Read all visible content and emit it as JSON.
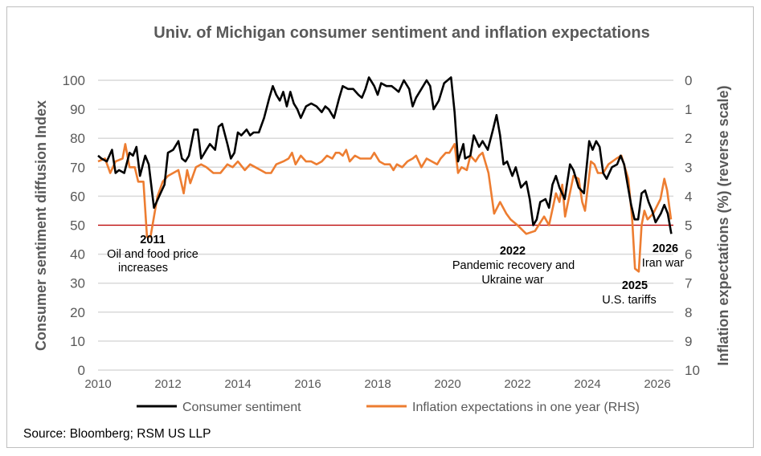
{
  "chart_data": {
    "type": "line",
    "title": "Univ. of Michigan consumer sentiment and inflation expectations",
    "ylabel": "Consumer sentiment diffusion Index",
    "y2label": "Inflation expectations (%) (reverse scale)",
    "xlim": [
      2010,
      2026.4
    ],
    "ylim": [
      0,
      100
    ],
    "y2lim": [
      10,
      0
    ],
    "y2_reversed": true,
    "x_ticks": [
      "2010",
      "2012",
      "2014",
      "2016",
      "2018",
      "2020",
      "2022",
      "2024",
      "2026"
    ],
    "y_ticks": [
      "0",
      "10",
      "20",
      "30",
      "40",
      "50",
      "60",
      "70",
      "80",
      "90",
      "100"
    ],
    "y2_ticks": [
      "0",
      "1",
      "2",
      "3",
      "4",
      "5",
      "6",
      "7",
      "8",
      "9",
      "10"
    ],
    "grid": true,
    "legend": "bottom",
    "reference_line": {
      "y": 50,
      "color": "#C00000"
    },
    "series": [
      {
        "name": "Consumer sentiment",
        "axis": "left",
        "color": "#000000",
        "x": [
          2010.0,
          2010.1,
          2010.25,
          2010.4,
          2010.5,
          2010.6,
          2010.75,
          2010.9,
          2011.0,
          2011.1,
          2011.2,
          2011.35,
          2011.45,
          2011.6,
          2011.75,
          2011.9,
          2012.0,
          2012.15,
          2012.3,
          2012.4,
          2012.5,
          2012.6,
          2012.75,
          2012.85,
          2012.95,
          2013.1,
          2013.2,
          2013.35,
          2013.45,
          2013.55,
          2013.7,
          2013.8,
          2013.9,
          2014.0,
          2014.1,
          2014.25,
          2014.35,
          2014.45,
          2014.6,
          2014.75,
          2014.9,
          2015.0,
          2015.1,
          2015.2,
          2015.3,
          2015.4,
          2015.5,
          2015.6,
          2015.7,
          2015.8,
          2015.95,
          2016.1,
          2016.25,
          2016.4,
          2016.5,
          2016.6,
          2016.75,
          2016.9,
          2017.0,
          2017.15,
          2017.3,
          2017.45,
          2017.55,
          2017.65,
          2017.75,
          2017.9,
          2018.0,
          2018.1,
          2018.25,
          2018.4,
          2018.5,
          2018.6,
          2018.75,
          2018.9,
          2019.0,
          2019.1,
          2019.25,
          2019.4,
          2019.5,
          2019.6,
          2019.75,
          2019.9,
          2020.0,
          2020.1,
          2020.2,
          2020.3,
          2020.45,
          2020.5,
          2020.65,
          2020.75,
          2020.9,
          2021.0,
          2021.15,
          2021.3,
          2021.4,
          2021.5,
          2021.6,
          2021.7,
          2021.85,
          2021.95,
          2022.1,
          2022.25,
          2022.35,
          2022.45,
          2022.55,
          2022.65,
          2022.8,
          2022.9,
          2023.0,
          2023.1,
          2023.2,
          2023.35,
          2023.5,
          2023.6,
          2023.75,
          2023.9,
          2024.05,
          2024.15,
          2024.25,
          2024.35,
          2024.45,
          2024.55,
          2024.7,
          2024.85,
          2024.95,
          2025.05,
          2025.15,
          2025.25,
          2025.35,
          2025.45,
          2025.55,
          2025.65,
          2025.75,
          2025.85,
          2025.95,
          2026.1,
          2026.2,
          2026.3,
          2026.4
        ],
        "values": [
          74,
          73,
          72,
          76,
          68,
          69,
          68,
          75,
          74,
          77,
          67,
          74,
          71,
          56,
          60,
          64,
          75,
          76,
          79,
          73,
          72,
          74,
          83,
          83,
          73,
          76,
          78,
          76,
          84,
          85,
          78,
          73,
          75,
          82,
          81,
          83,
          81,
          82,
          82,
          87,
          94,
          98,
          95,
          93,
          96,
          91,
          96,
          92,
          90,
          87,
          91,
          92,
          91,
          89,
          91,
          90,
          87,
          94,
          98,
          97,
          97,
          95,
          94,
          97,
          101,
          98,
          95,
          99,
          98,
          98,
          97,
          96,
          100,
          97,
          91,
          94,
          97,
          100,
          98,
          90,
          93,
          99,
          100,
          101,
          89,
          72,
          78,
          73,
          74,
          81,
          77,
          79,
          76,
          83,
          88,
          81,
          71,
          72,
          67,
          70,
          63,
          65,
          59,
          50,
          52,
          58,
          59,
          56,
          64,
          67,
          63,
          59,
          71,
          69,
          63,
          61,
          79,
          76,
          79,
          77,
          68,
          66,
          70,
          71,
          74,
          71,
          64,
          57,
          52,
          52,
          61,
          62,
          58,
          55,
          51,
          54,
          57,
          54,
          47
        ]
      },
      {
        "name": "Inflation expectations in one year (RHS)",
        "axis": "right",
        "color": "#ED7D31",
        "x": [
          2010.0,
          2010.2,
          2010.35,
          2010.5,
          2010.7,
          2010.78,
          2010.9,
          2011.05,
          2011.15,
          2011.3,
          2011.4,
          2011.5,
          2011.7,
          2011.85,
          2012.0,
          2012.15,
          2012.3,
          2012.45,
          2012.55,
          2012.64,
          2012.8,
          2012.95,
          2013.1,
          2013.3,
          2013.5,
          2013.7,
          2013.85,
          2014.0,
          2014.2,
          2014.35,
          2014.5,
          2014.65,
          2014.8,
          2014.95,
          2015.1,
          2015.3,
          2015.45,
          2015.55,
          2015.65,
          2015.8,
          2015.95,
          2016.1,
          2016.25,
          2016.4,
          2016.55,
          2016.7,
          2016.8,
          2016.9,
          2017.0,
          2017.1,
          2017.2,
          2017.35,
          2017.5,
          2017.65,
          2017.8,
          2017.9,
          2018.05,
          2018.2,
          2018.35,
          2018.45,
          2018.55,
          2018.7,
          2018.85,
          2019.0,
          2019.1,
          2019.25,
          2019.4,
          2019.55,
          2019.7,
          2019.8,
          2019.95,
          2020.05,
          2020.2,
          2020.3,
          2020.4,
          2020.55,
          2020.65,
          2020.8,
          2020.9,
          2021.0,
          2021.17,
          2021.33,
          2021.5,
          2021.68,
          2021.8,
          2022.0,
          2022.25,
          2022.5,
          2022.76,
          2022.9,
          2023.1,
          2023.2,
          2023.28,
          2023.36,
          2023.6,
          2023.75,
          2023.85,
          2023.93,
          2024.1,
          2024.2,
          2024.3,
          2024.45,
          2024.6,
          2024.83,
          2024.97,
          2025.17,
          2025.28,
          2025.36,
          2025.47,
          2025.55,
          2025.63,
          2025.72,
          2025.88,
          2026.09,
          2026.2,
          2026.28,
          2026.39
        ],
        "values": [
          2.8,
          2.7,
          3.2,
          2.8,
          2.7,
          2.2,
          3.0,
          3.0,
          3.5,
          3.5,
          5.4,
          5.4,
          4.0,
          3.5,
          3.3,
          3.2,
          3.1,
          3.9,
          3.1,
          3.55,
          3.0,
          2.9,
          3.0,
          3.2,
          3.2,
          2.9,
          3.0,
          2.8,
          3.1,
          2.9,
          3.0,
          3.1,
          3.2,
          3.2,
          2.9,
          2.8,
          2.7,
          2.5,
          2.9,
          2.6,
          2.8,
          2.8,
          2.9,
          2.8,
          2.6,
          2.7,
          2.5,
          2.5,
          2.6,
          2.4,
          2.8,
          2.6,
          2.7,
          2.7,
          2.7,
          2.5,
          2.8,
          2.9,
          2.9,
          3.1,
          2.9,
          3.0,
          2.8,
          2.7,
          2.6,
          3.0,
          2.7,
          2.8,
          2.9,
          2.7,
          2.5,
          2.5,
          2.2,
          3.2,
          3.0,
          3.1,
          2.6,
          2.8,
          2.6,
          2.5,
          3.2,
          4.6,
          4.2,
          4.6,
          4.8,
          5.0,
          5.3,
          5.2,
          4.7,
          5.0,
          3.9,
          4.2,
          3.6,
          4.7,
          3.3,
          3.4,
          4.2,
          4.5,
          2.8,
          2.9,
          3.2,
          3.2,
          2.9,
          2.7,
          2.6,
          3.4,
          4.8,
          6.5,
          6.6,
          5.0,
          4.5,
          4.8,
          4.6,
          4.1,
          3.4,
          3.8,
          4.8
        ]
      }
    ],
    "annotations": [
      {
        "year": "2011",
        "text": [
          "Oil and food price",
          "increases"
        ]
      },
      {
        "year": "2022",
        "text": [
          "Pandemic recovery and",
          "Ukraine war"
        ]
      },
      {
        "year": "2025",
        "text": [
          "U.S. tariffs"
        ]
      },
      {
        "year": "2026",
        "text": [
          "Iran war"
        ]
      }
    ],
    "source": "Source: Bloomberg; RSM US LLP"
  }
}
